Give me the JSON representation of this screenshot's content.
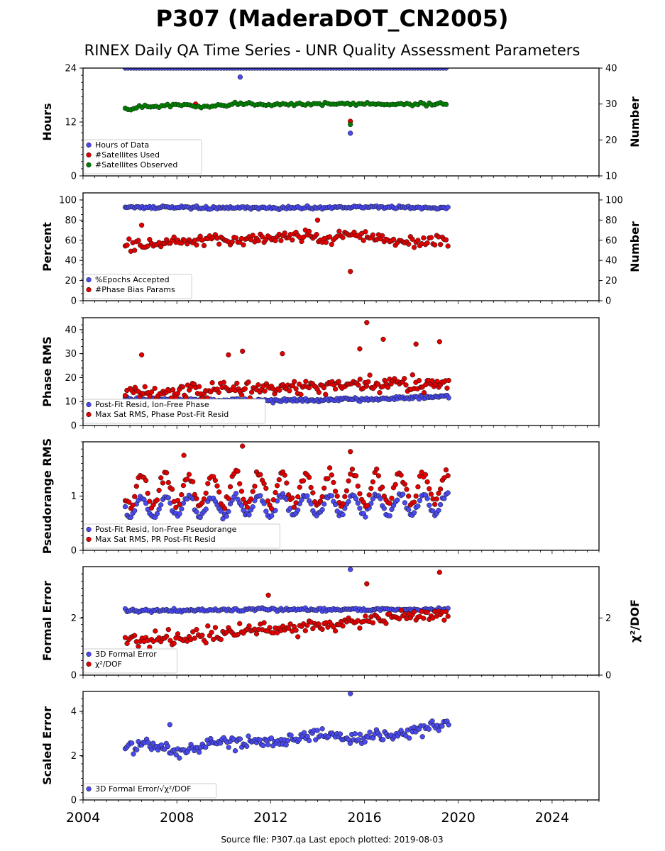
{
  "title": "P307 (MaderaDOT_CN2005)",
  "subtitle": "RINEX Daily QA Time Series - UNR Quality Assessment Parameters",
  "footer": "Source file: P307.qa Last epoch plotted: 2019-08-03",
  "x_axis": {
    "range": [
      2004,
      2026
    ],
    "ticks": [
      "2004",
      "2008",
      "2012",
      "2016",
      "2020",
      "2024"
    ],
    "tick_values": [
      2004,
      2008,
      2012,
      2016,
      2020,
      2024
    ],
    "data_start": 2005.8,
    "data_end": 2019.59
  },
  "chart_data": [
    {
      "type": "scatter",
      "ylabel": "Hours",
      "ylim": [
        0,
        24
      ],
      "yticks": [
        "0",
        "12",
        "24"
      ],
      "y2label": "Number",
      "y2lim": [
        10,
        40
      ],
      "y2ticks": [
        "10",
        "20",
        "30",
        "40"
      ],
      "legend_position": "lower-left",
      "series": [
        {
          "name": "Hours of Data",
          "color": "#4a4af0",
          "axis": "left",
          "level": 24.0,
          "outliers": [
            [
              2010.7,
              22.0
            ],
            [
              2015.4,
              9.5
            ]
          ]
        },
        {
          "name": "#Satellites Used",
          "color": "#e00000",
          "axis": "right",
          "outliers": [
            [
              2008.8,
              30.0
            ],
            [
              2015.4,
              25.2
            ]
          ]
        },
        {
          "name": "#Satellites Observed",
          "color": "#008000",
          "axis": "right",
          "segments": [
            [
              2005.8,
              28.8
            ],
            [
              2007.0,
              29.3
            ],
            [
              2008.0,
              29.8
            ],
            [
              2009.3,
              29.0
            ],
            [
              2010.0,
              29.5
            ],
            [
              2010.5,
              30.0
            ],
            [
              2012.0,
              30.0
            ],
            [
              2014.0,
              30.0
            ],
            [
              2016.0,
              30.0
            ],
            [
              2019.59,
              30.0
            ]
          ],
          "outliers": [
            [
              2015.4,
              24.3
            ]
          ]
        }
      ]
    },
    {
      "type": "scatter",
      "ylabel": "Percent",
      "ylim": [
        0,
        107
      ],
      "yticks": [
        "0",
        "20",
        "40",
        "60",
        "80",
        "100"
      ],
      "y2label": "Number",
      "y2ticks": [
        "0",
        "20",
        "40",
        "60",
        "80",
        "100"
      ],
      "legend_position": "lower-left",
      "series": [
        {
          "name": "%Epochs Accepted",
          "color": "#4a4af0",
          "axis": "left",
          "trend": [
            [
              2005.8,
              93
            ],
            [
              2009.5,
              92
            ],
            [
              2012.0,
              92
            ],
            [
              2016.0,
              93
            ],
            [
              2019.59,
              92
            ]
          ]
        },
        {
          "name": "#Phase Bias Params",
          "color": "#e00000",
          "axis": "right",
          "trend": [
            [
              2005.8,
              55
            ],
            [
              2008.0,
              58
            ],
            [
              2010.0,
              60
            ],
            [
              2012.0,
              62
            ],
            [
              2013.5,
              66
            ],
            [
              2014.5,
              60
            ],
            [
              2015.5,
              68
            ],
            [
              2017.0,
              58
            ],
            [
              2019.59,
              60
            ]
          ],
          "outliers": [
            [
              2015.4,
              29
            ],
            [
              2006.5,
              75
            ],
            [
              2014.0,
              80
            ]
          ]
        }
      ]
    },
    {
      "type": "scatter",
      "ylabel": "Phase RMS",
      "ylim": [
        0,
        45
      ],
      "yticks": [
        "0",
        "10",
        "20",
        "30",
        "40"
      ],
      "legend_position": "lower-left",
      "series": [
        {
          "name": "Post-Fit Resid, Ion-Free Phase",
          "color": "#4a4af0",
          "trend": [
            [
              2005.8,
              11
            ],
            [
              2010.0,
              10.5
            ],
            [
              2014.0,
              10.5
            ],
            [
              2019.59,
              12
            ]
          ]
        },
        {
          "name": "Max Sat RMS, Phase Post-Fit Resid",
          "color": "#e00000",
          "trend": [
            [
              2005.8,
              13
            ],
            [
              2010.0,
              15
            ],
            [
              2014.0,
              16
            ],
            [
              2019.59,
              18
            ]
          ],
          "outliers": [
            [
              2006.5,
              29.5
            ],
            [
              2010.2,
              29.5
            ],
            [
              2010.8,
              31
            ],
            [
              2012.5,
              30
            ],
            [
              2016.1,
              43
            ],
            [
              2016.8,
              36
            ],
            [
              2018.2,
              34
            ],
            [
              2019.2,
              35
            ],
            [
              2015.8,
              32
            ]
          ]
        }
      ]
    },
    {
      "type": "scatter",
      "ylabel": "Pseudorange RMS",
      "ylim": [
        0,
        2.0
      ],
      "yticks": [
        "0",
        "1"
      ],
      "legend_position": "lower-left",
      "series": [
        {
          "name": "Post-Fit Resid, Ion-Free Pseudorange",
          "color": "#4a4af0",
          "trend": [
            [
              2005.8,
              0.8
            ],
            [
              2019.59,
              0.85
            ]
          ],
          "seasonal_amplitude": 0.18
        },
        {
          "name": "Max Sat RMS, PR Post-Fit Resid",
          "color": "#e00000",
          "trend": [
            [
              2005.8,
              1.1
            ],
            [
              2019.59,
              1.15
            ]
          ],
          "seasonal_amplitude": 0.3,
          "outliers": [
            [
              2010.8,
              1.92
            ],
            [
              2015.4,
              1.82
            ],
            [
              2008.3,
              1.75
            ]
          ]
        }
      ]
    },
    {
      "type": "scatter",
      "ylabel": "Formal Error",
      "ylim": [
        0,
        3.8
      ],
      "yticks": [
        "0",
        "2"
      ],
      "y2label": "χ²/DOF",
      "y2ticks": [
        "0",
        "2"
      ],
      "legend_position": "lower-left",
      "series": [
        {
          "name": "3D Formal Error",
          "color": "#4a4af0",
          "axis": "left",
          "trend": [
            [
              2005.8,
              2.25
            ],
            [
              2012.0,
              2.3
            ],
            [
              2019.59,
              2.3
            ]
          ],
          "outliers": [
            [
              2015.4,
              3.7
            ]
          ]
        },
        {
          "name": "χ²/DOF",
          "color": "#e00000",
          "axis": "right",
          "trend": [
            [
              2005.8,
              1.2
            ],
            [
              2009.0,
              1.4
            ],
            [
              2012.0,
              1.6
            ],
            [
              2016.0,
              1.9
            ],
            [
              2019.59,
              2.2
            ]
          ],
          "outliers": [
            [
              2016.1,
              3.2
            ],
            [
              2019.2,
              3.6
            ],
            [
              2011.9,
              2.8
            ]
          ]
        }
      ]
    },
    {
      "type": "scatter",
      "ylabel": "Scaled Error",
      "ylim": [
        0,
        4.9
      ],
      "yticks": [
        "0",
        "2",
        "4"
      ],
      "legend_position": "lower-left",
      "series": [
        {
          "name": "3D Formal Error/√χ²/DOF",
          "color": "#4a4af0",
          "trend": [
            [
              2005.8,
              2.3
            ],
            [
              2007.0,
              2.5
            ],
            [
              2008.0,
              2.2
            ],
            [
              2010.0,
              2.6
            ],
            [
              2012.0,
              2.7
            ],
            [
              2014.0,
              2.9
            ],
            [
              2016.0,
              2.8
            ],
            [
              2018.0,
              3.1
            ],
            [
              2019.59,
              3.4
            ]
          ],
          "outliers": [
            [
              2015.4,
              4.8
            ],
            [
              2007.7,
              3.4
            ]
          ]
        }
      ]
    }
  ]
}
